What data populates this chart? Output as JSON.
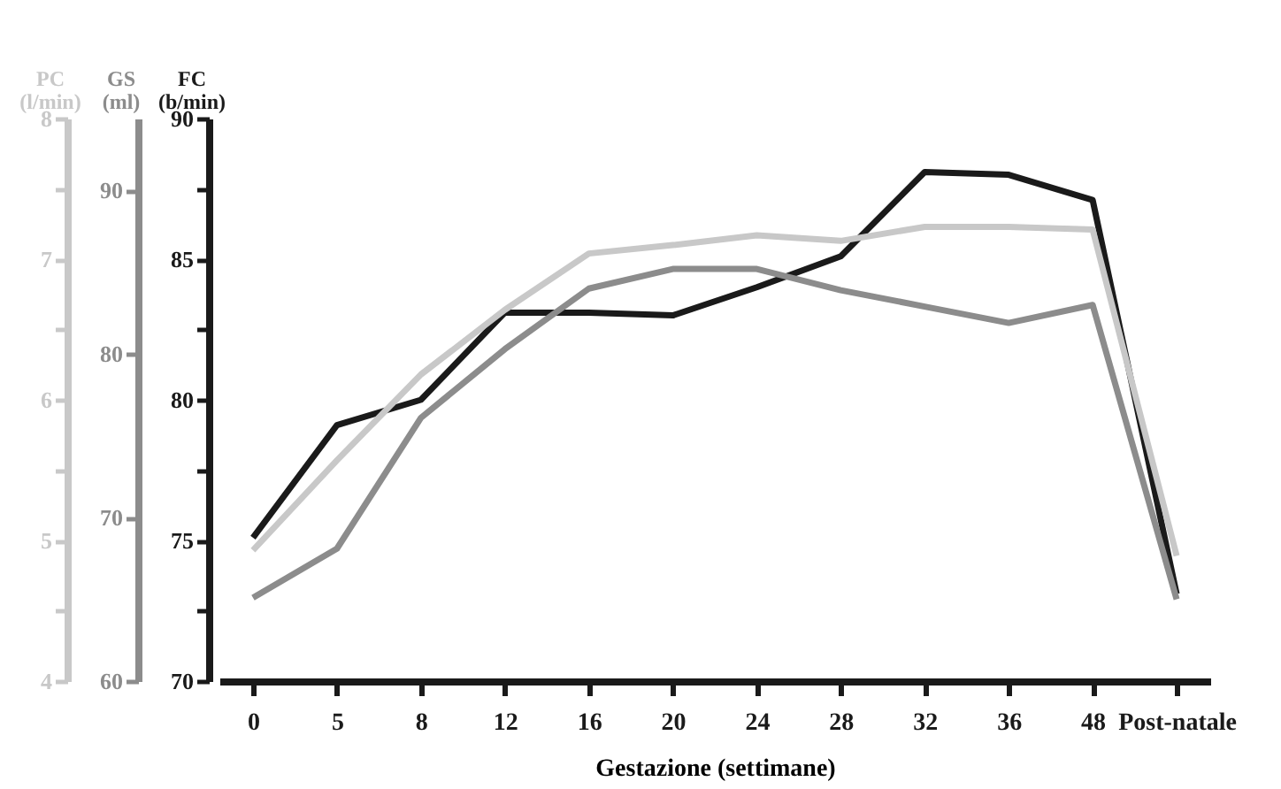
{
  "chart_data": {
    "type": "line",
    "xlabel": "Gestazione (settimane)",
    "ylabel": "FC (b/min)",
    "y2label": "GS (ml)",
    "y3label": "PC (l/min)",
    "categories": [
      "0",
      "5",
      "8",
      "12",
      "16",
      "20",
      "24",
      "28",
      "32",
      "36",
      "48",
      "Post-natale"
    ],
    "series": [
      {
        "color": "#1a1a1a",
        "axis": "y",
        "values": [
          75.1,
          79.1,
          80.0,
          83.1,
          83.1,
          83.0,
          84.0,
          85.1,
          88.1,
          88.0,
          87.1,
          73.1
        ]
      },
      {
        "color": "#8c8c8c",
        "axis": "y2",
        "values": [
          65.1,
          68.1,
          76.1,
          80.3,
          84.0,
          85.2,
          85.2,
          83.9,
          82.9,
          81.9,
          83.0,
          65.0
        ]
      },
      {
        "color": "#c8c8c8",
        "axis": "y3",
        "values": [
          4.93,
          5.57,
          6.18,
          6.64,
          7.04,
          7.1,
          7.17,
          7.13,
          7.23,
          7.23,
          7.21,
          4.89
        ]
      }
    ],
    "ylim": [
      70,
      90
    ],
    "yticks": [
      70,
      {
        "value": 72.5,
        "label": null
      },
      75,
      {
        "value": 77.5,
        "label": null
      },
      80,
      {
        "value": 82.5,
        "label": null
      },
      85,
      {
        "value": 87.5,
        "label": null
      },
      90
    ],
    "y2lim": [
      60,
      94.4
    ],
    "y2ticks": [
      60,
      70,
      80,
      90
    ],
    "y3lim": [
      4,
      8
    ],
    "y3ticks": [
      4,
      {
        "value": 4.5,
        "label": null
      },
      5,
      {
        "value": 5.5,
        "label": null
      },
      6,
      {
        "value": 6.5,
        "label": null
      },
      7,
      {
        "value": 7.5,
        "label": null
      },
      8
    ],
    "grid": false,
    "line_style": "solid",
    "marker": "none"
  }
}
